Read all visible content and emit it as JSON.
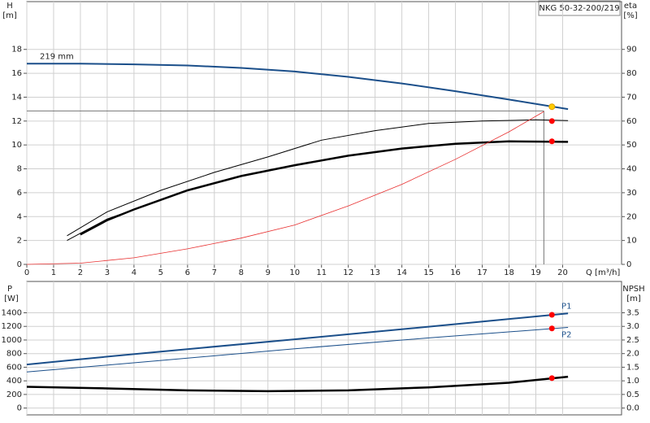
{
  "chart_data": [
    {
      "type": "line",
      "title": "NKG 50-32-200/219",
      "ylabel": {
        "name": "H",
        "unit": "[m]"
      },
      "y2label": {
        "name": "eta",
        "unit": "[%]"
      },
      "xlabel": "Q [m³/h]",
      "xlim": [
        0,
        22.2
      ],
      "ylim": [
        0,
        22
      ],
      "y2lim": [
        0,
        110
      ],
      "xticks": [
        0,
        1,
        2,
        3,
        4,
        5,
        6,
        7,
        8,
        9,
        10,
        11,
        12,
        13,
        14,
        15,
        16,
        17,
        18,
        19,
        20
      ],
      "yticks": [
        0,
        2,
        4,
        6,
        8,
        10,
        12,
        14,
        16,
        18
      ],
      "y2ticks": [
        0,
        10,
        20,
        30,
        40,
        50,
        60,
        70,
        80,
        90
      ],
      "grid": true,
      "series": [
        {
          "name": "219 mm",
          "color": "#1b4f8a",
          "width": 2,
          "x": [
            0,
            2,
            4,
            6,
            8,
            10,
            12,
            14,
            16,
            18,
            20.2
          ],
          "values": [
            16.8,
            16.8,
            16.75,
            16.65,
            16.45,
            16.15,
            15.7,
            15.15,
            14.5,
            13.8,
            13.0
          ]
        },
        {
          "color": "#000000",
          "width": 1,
          "axis": "y2",
          "x": [
            1.5,
            3,
            5,
            7,
            9,
            11,
            13,
            15,
            17,
            19,
            20.2
          ],
          "values": [
            12,
            22,
            31,
            38.5,
            45,
            52,
            56,
            59,
            60,
            60.5,
            60.2
          ]
        },
        {
          "color": "#000000",
          "width": 1,
          "axis": "y2",
          "x": [
            1.5,
            2,
            3,
            4
          ],
          "values": [
            10,
            13,
            19,
            23
          ]
        },
        {
          "color": "#000000",
          "width": 2.5,
          "axis": "y2",
          "x": [
            2,
            3,
            4,
            6,
            8,
            10,
            12,
            14,
            16,
            18,
            20.2
          ],
          "values": [
            12.5,
            18.5,
            23,
            31,
            37,
            41.5,
            45.5,
            48.5,
            50.5,
            51.5,
            51.3
          ]
        },
        {
          "color": "#e83030",
          "width": 0.8,
          "x": [
            0,
            2,
            4,
            6,
            8,
            10,
            12,
            14,
            16,
            18,
            19.3
          ],
          "values": [
            0,
            0.1,
            0.55,
            1.3,
            2.2,
            3.3,
            4.9,
            6.7,
            8.8,
            11.1,
            12.8
          ]
        }
      ],
      "points": [
        {
          "color": "#ffcc00",
          "x": 19.6,
          "value": 13.2
        },
        {
          "color": "#ff0000",
          "axis": "y2",
          "x": 19.6,
          "value": 60
        },
        {
          "color": "#ff0000",
          "axis": "y2",
          "x": 19.6,
          "value": 51.5
        }
      ],
      "guide": {
        "x": 19.3,
        "y": 12.85
      }
    },
    {
      "type": "line",
      "ylabel": {
        "name": "P",
        "unit": "[W]"
      },
      "y2label": {
        "name": "NPSH",
        "unit": "[m]"
      },
      "xlim": [
        0,
        22.2
      ],
      "ylim": [
        -100,
        1860
      ],
      "y2lim": [
        -0.25,
        4.65
      ],
      "yticks": [
        0,
        200,
        400,
        600,
        800,
        1000,
        1200,
        1400
      ],
      "y2ticks": [
        {
          "value": 0,
          "label": "0.0"
        },
        0.5,
        {
          "value": 1,
          "label": "1.0"
        },
        1.5,
        {
          "value": 2,
          "label": "2.0"
        },
        2.5,
        {
          "value": 3,
          "label": "3.0"
        },
        3.5
      ],
      "grid": true,
      "series": [
        {
          "name": "P1",
          "color": "#1b4f8a",
          "width": 2,
          "x": [
            0,
            2,
            5,
            10,
            15,
            20.2
          ],
          "values": [
            640,
            718,
            830,
            1010,
            1195,
            1390
          ]
        },
        {
          "name": "P2",
          "color": "#1b4f8a",
          "width": 1,
          "x": [
            0,
            5,
            10,
            15,
            20.2
          ],
          "values": [
            530,
            700,
            870,
            1030,
            1185
          ]
        },
        {
          "color": "#000000",
          "width": 2.5,
          "axis": "y2",
          "x": [
            0,
            3,
            6,
            9,
            12,
            15,
            18,
            20.2
          ],
          "values": [
            0.78,
            0.72,
            0.65,
            0.62,
            0.65,
            0.76,
            0.93,
            1.15
          ]
        }
      ],
      "points": [
        {
          "color": "#ff0000",
          "x": 19.6,
          "value": 1370
        },
        {
          "color": "#ff0000",
          "x": 19.6,
          "value": 1170
        },
        {
          "color": "#ff0000",
          "axis": "y2",
          "x": 19.6,
          "value": 1.1
        }
      ]
    }
  ]
}
